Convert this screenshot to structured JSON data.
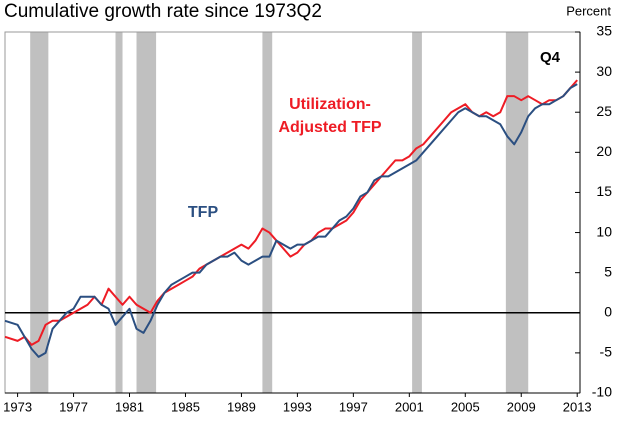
{
  "chart_data": {
    "type": "line",
    "title": "Cumulative growth rate since 1973Q2",
    "y_axis_label": "Percent",
    "annotation": "Q4",
    "xlim": [
      1972.1,
      2013.2
    ],
    "xticks": [
      1973,
      1977,
      1981,
      1985,
      1989,
      1993,
      1997,
      2001,
      2005,
      2009,
      2013
    ],
    "ylim": [
      -10,
      35
    ],
    "yticks": [
      -10,
      -5,
      0,
      5,
      10,
      15,
      20,
      25,
      30,
      35
    ],
    "shading": [
      [
        1973.9,
        1975.2
      ],
      [
        1980.0,
        1980.5
      ],
      [
        1981.5,
        1982.9
      ],
      [
        1990.5,
        1991.2
      ],
      [
        2001.2,
        2001.9
      ],
      [
        2007.9,
        2009.5
      ]
    ],
    "shading_color": "#c0c0c0",
    "x": [
      1972.1,
      1973,
      1973.5,
      1974,
      1974.5,
      1975,
      1975.5,
      1976,
      1976.5,
      1977,
      1977.5,
      1978,
      1978.5,
      1979,
      1979.5,
      1980,
      1980.5,
      1981,
      1981.5,
      1982,
      1982.5,
      1983,
      1983.5,
      1984,
      1984.5,
      1985,
      1985.5,
      1986,
      1986.5,
      1987,
      1987.5,
      1988,
      1988.5,
      1989,
      1989.5,
      1990,
      1990.5,
      1991,
      1991.5,
      1992,
      1992.5,
      1993,
      1993.5,
      1994,
      1994.5,
      1995,
      1995.5,
      1996,
      1996.5,
      1997,
      1997.5,
      1998,
      1998.5,
      1999,
      1999.5,
      2000,
      2000.5,
      2001,
      2001.5,
      2002,
      2002.5,
      2003,
      2003.5,
      2004,
      2004.5,
      2005,
      2005.5,
      2006,
      2006.5,
      2007,
      2007.5,
      2008,
      2008.5,
      2009,
      2009.5,
      2010,
      2010.5,
      2011,
      2011.5,
      2012,
      2012.5,
      2013
    ],
    "series": [
      {
        "label": [
          "Utilization-",
          "Adjusted TFP"
        ],
        "color": "#ee1c25",
        "values": [
          -3,
          -3.5,
          -3,
          -4,
          -3.5,
          -1.5,
          -1,
          -1,
          -0.5,
          0,
          0.5,
          1,
          2,
          1,
          3,
          2,
          1,
          2,
          1,
          0.5,
          0,
          1.5,
          2.5,
          3,
          3.5,
          4,
          4.5,
          5.5,
          6,
          6.5,
          7,
          7.5,
          8,
          8.5,
          8,
          9,
          10.5,
          10,
          9,
          8,
          7,
          7.5,
          8.5,
          9,
          10,
          10.5,
          10.5,
          11,
          11.5,
          12.5,
          14,
          15,
          16,
          17,
          18,
          19,
          19,
          19.5,
          20.5,
          21,
          22,
          23,
          24,
          25,
          25.5,
          26,
          25,
          24.5,
          25,
          24.5,
          25,
          27,
          27,
          26.5,
          27,
          26.5,
          26,
          26.5,
          26.5,
          27,
          28,
          29
        ]
      },
      {
        "label": [
          "TFP"
        ],
        "color": "#2b4f81",
        "values": [
          -1,
          -1.5,
          -3,
          -4.5,
          -5.5,
          -5,
          -2,
          -1,
          0,
          0.5,
          2,
          2,
          2,
          1,
          0.5,
          -1.5,
          -0.5,
          0.5,
          -2,
          -2.5,
          -1,
          1,
          2.5,
          3.5,
          4,
          4.5,
          5,
          5,
          6,
          6.5,
          7,
          7,
          7.5,
          6.5,
          6,
          6.5,
          7,
          7,
          9,
          8.5,
          8,
          8.5,
          8.5,
          9,
          9.5,
          9.5,
          10.5,
          11.5,
          12,
          13,
          14.5,
          15,
          16.5,
          17,
          17,
          17.5,
          18,
          18.5,
          19,
          20,
          21,
          22,
          23,
          24,
          25,
          25.5,
          25,
          24.5,
          24.5,
          24,
          23.5,
          22,
          21,
          22.5,
          24.5,
          25.5,
          26,
          26,
          26.5,
          27,
          28,
          28.5
        ]
      }
    ]
  }
}
